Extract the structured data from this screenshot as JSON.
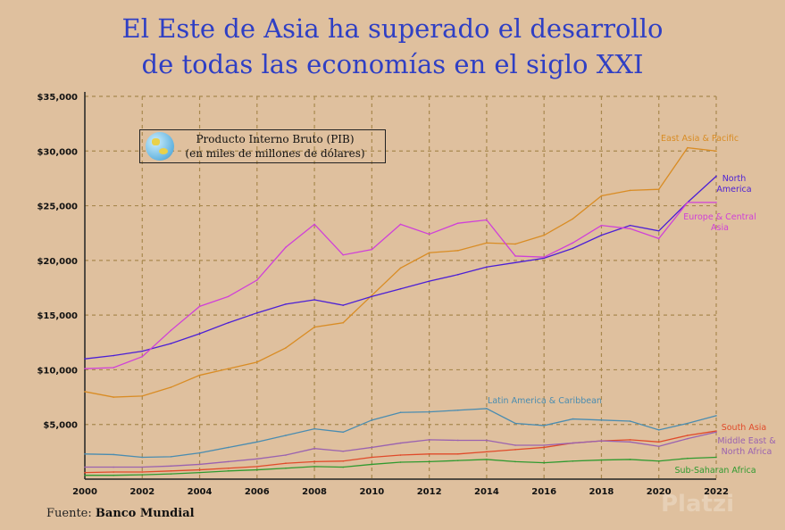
{
  "title": {
    "line1": "El Este de Asia ha superado el desarrollo",
    "line2": "de todas las economías en el siglo XXI"
  },
  "legend_box": {
    "line1": "Producto Interno Bruto (PIB)",
    "line2": "(en miles de millones de dólares)",
    "icon": "globe-icon"
  },
  "footer": {
    "prefix": "Fuente:",
    "source": "Banco Mundial"
  },
  "watermark": "Platzi",
  "colors": {
    "background": "#dfc09e",
    "title": "#2f3fc4",
    "grid": "#a8884e"
  },
  "chart_data": {
    "type": "line",
    "title": "El Este de Asia ha superado el desarrollo de todas las economías en el siglo XXI",
    "xlabel": "",
    "ylabel": "Producto Interno Bruto (PIB) (en miles de millones de dólares)",
    "x": [
      2000,
      2001,
      2002,
      2003,
      2004,
      2005,
      2006,
      2007,
      2008,
      2009,
      2010,
      2011,
      2012,
      2013,
      2014,
      2015,
      2016,
      2017,
      2018,
      2019,
      2020,
      2021,
      2022
    ],
    "xlim": [
      2000,
      2022
    ],
    "ylim": [
      0,
      35000
    ],
    "xticks": [
      "2000",
      "2002",
      "2004",
      "2006",
      "2008",
      "2010",
      "2012",
      "2014",
      "2016",
      "2018",
      "2020",
      "2022"
    ],
    "yticks": [
      "$5,000",
      "$10,000",
      "$15,000",
      "$20,000",
      "$25,000",
      "$30,000",
      "$35,000"
    ],
    "grid": true,
    "legend": "direct-labels",
    "series": [
      {
        "name": "East Asia & Pacific",
        "color": "#d98c24",
        "values": [
          8000,
          7500,
          7600,
          8400,
          9500,
          10100,
          10700,
          12000,
          13900,
          14300,
          16800,
          19300,
          20700,
          20900,
          21600,
          21500,
          22300,
          23800,
          25900,
          26400,
          26500,
          30300,
          30000
        ]
      },
      {
        "name": "North America",
        "color": "#4b1fd6",
        "values": [
          11000,
          11300,
          11700,
          12400,
          13300,
          14300,
          15200,
          16000,
          16400,
          15900,
          16700,
          17400,
          18100,
          18700,
          19400,
          19800,
          20200,
          21100,
          22300,
          23200,
          22700,
          25300,
          27700
        ]
      },
      {
        "name": "Europe & Central Asia",
        "color": "#d040d8",
        "values": [
          10100,
          10200,
          11200,
          13600,
          15800,
          16700,
          18200,
          21200,
          23300,
          20500,
          21000,
          23300,
          22400,
          23400,
          23700,
          20400,
          20300,
          21600,
          23200,
          22900,
          22000,
          25300,
          25300
        ]
      },
      {
        "name": "Latin America & Caribbean",
        "color": "#4a8cb0",
        "values": [
          2300,
          2250,
          2000,
          2050,
          2400,
          2900,
          3400,
          4000,
          4600,
          4300,
          5400,
          6100,
          6150,
          6300,
          6450,
          5100,
          4900,
          5500,
          5400,
          5300,
          4500,
          5100,
          5800
        ]
      },
      {
        "name": "South Asia",
        "color": "#e04a2a",
        "values": [
          600,
          650,
          650,
          750,
          850,
          1000,
          1150,
          1450,
          1600,
          1650,
          2000,
          2200,
          2300,
          2300,
          2500,
          2700,
          2900,
          3300,
          3500,
          3600,
          3400,
          4000,
          4400
        ]
      },
      {
        "name": "Middle East & North Africa",
        "color": "#9a62b0",
        "values": [
          1100,
          1100,
          1100,
          1200,
          1350,
          1600,
          1850,
          2200,
          2800,
          2550,
          2900,
          3300,
          3600,
          3550,
          3550,
          3100,
          3100,
          3300,
          3500,
          3400,
          3000,
          3700,
          4300
        ]
      },
      {
        "name": "Sub-Saharan Africa",
        "color": "#2f9a2f",
        "values": [
          350,
          350,
          400,
          480,
          600,
          750,
          850,
          1000,
          1150,
          1100,
          1350,
          1550,
          1600,
          1700,
          1800,
          1600,
          1500,
          1650,
          1750,
          1800,
          1650,
          1900,
          2000
        ]
      }
    ]
  }
}
